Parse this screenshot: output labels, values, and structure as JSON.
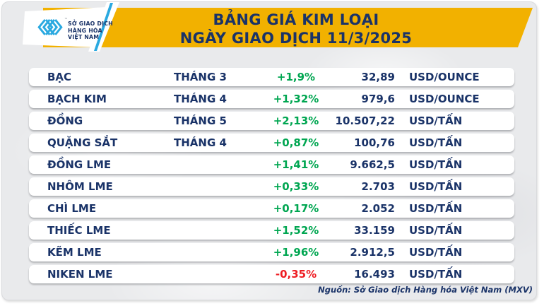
{
  "logo": {
    "org_line1": "SỞ GIAO DỊCH",
    "org_line2": "HÀNG HÓA",
    "org_line3": "VIỆT NAM",
    "trademark": "™"
  },
  "header": {
    "title_line1": "BẢNG GIÁ KIM LOẠI",
    "title_line2": "NGÀY GIAO DỊCH 11/3/2025"
  },
  "chart_data": {
    "type": "table",
    "title": "BẢNG GIÁ KIM LOẠI NGÀY GIAO DỊCH 11/3/2025",
    "columns": [
      "commodity",
      "contract_month",
      "change_percent",
      "price",
      "unit"
    ],
    "rows": [
      {
        "name": "BẠC",
        "month": "THÁNG 3",
        "change": "+1,9%",
        "price": "32,89",
        "unit": "USD/OUNCE",
        "trend": "up"
      },
      {
        "name": "BẠCH KIM",
        "month": "THÁNG 4",
        "change": "+1,32%",
        "price": "979,6",
        "unit": "USD/OUNCE",
        "trend": "up"
      },
      {
        "name": "ĐỒNG",
        "month": "THÁNG 5",
        "change": "+2,13%",
        "price": "10.507,22",
        "unit": "USD/TẤN",
        "trend": "up"
      },
      {
        "name": "QUẶNG SẮT",
        "month": "THÁNG 4",
        "change": "+0,87%",
        "price": "100,76",
        "unit": "USD/TẤN",
        "trend": "up"
      },
      {
        "name": "ĐỒNG LME",
        "month": "",
        "change": "+1,41%",
        "price": "9.662,5",
        "unit": "USD/TẤN",
        "trend": "up"
      },
      {
        "name": "NHÔM LME",
        "month": "",
        "change": "+0,33%",
        "price": "2.703",
        "unit": "USD/TẤN",
        "trend": "up"
      },
      {
        "name": "CHÌ LME",
        "month": "",
        "change": "+0,17%",
        "price": "2.052",
        "unit": "USD/TẤN",
        "trend": "up"
      },
      {
        "name": "THIẾC LME",
        "month": "",
        "change": "+1,52%",
        "price": "33.159",
        "unit": "USD/TẤN",
        "trend": "up"
      },
      {
        "name": "KẼM LME",
        "month": "",
        "change": "+1,96%",
        "price": "2.912,5",
        "unit": "USD/TẤN",
        "trend": "up"
      },
      {
        "name": "NIKEN LME",
        "month": "",
        "change": "-0,35%",
        "price": "16.493",
        "unit": "USD/TẤN",
        "trend": "down"
      }
    ]
  },
  "footer": {
    "source": "Nguồn: Sở Giao dịch Hàng hóa Việt Nam (MXV)"
  },
  "colors": {
    "band_yellow": "#F2B100",
    "navy": "#1A3368",
    "up_green": "#00A651",
    "down_red": "#EE1D23",
    "logo_blue": "#2AA9E0"
  }
}
